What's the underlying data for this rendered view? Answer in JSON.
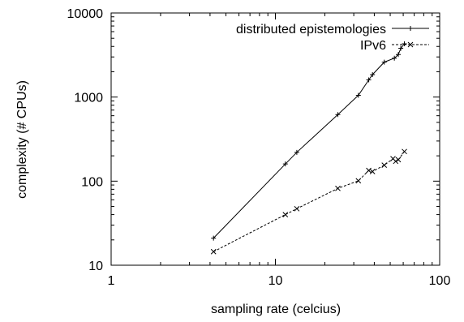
{
  "chart_data": {
    "type": "line",
    "title": "",
    "xlabel": "sampling rate (celcius)",
    "ylabel": "complexity (# CPUs)",
    "xscale": "log",
    "yscale": "log",
    "xlim": [
      1,
      100
    ],
    "ylim": [
      10,
      10000
    ],
    "x_ticks": [
      "1",
      "10",
      "100"
    ],
    "y_ticks": [
      "10",
      "100",
      "1000",
      "10000"
    ],
    "grid": false,
    "legend_position": "top-right",
    "series": [
      {
        "name": "distributed epistemologies",
        "line_style": "solid",
        "marker": "plus",
        "color": "#000000",
        "points": [
          [
            4.2,
            21
          ],
          [
            11.5,
            160
          ],
          [
            13.5,
            220
          ],
          [
            24,
            620
          ],
          [
            32,
            1050
          ],
          [
            37,
            1600
          ],
          [
            39,
            1850
          ],
          [
            46,
            2600
          ],
          [
            53,
            2900
          ],
          [
            56,
            3200
          ],
          [
            58,
            3800
          ],
          [
            61,
            4300
          ]
        ]
      },
      {
        "name": "IPv6",
        "line_style": "dashed",
        "marker": "cross",
        "color": "#000000",
        "points": [
          [
            4.2,
            14.5
          ],
          [
            11.5,
            40
          ],
          [
            13.5,
            47
          ],
          [
            24,
            82
          ],
          [
            32,
            101
          ],
          [
            37,
            134
          ],
          [
            39,
            130
          ],
          [
            46,
            155
          ],
          [
            52,
            185
          ],
          [
            54,
            172
          ],
          [
            56,
            180
          ],
          [
            61,
            225
          ]
        ]
      }
    ]
  }
}
